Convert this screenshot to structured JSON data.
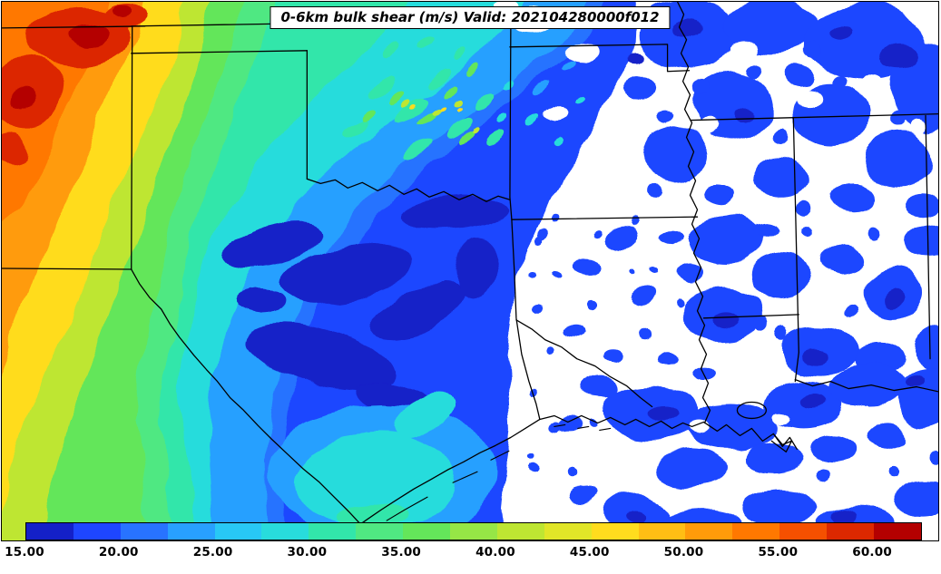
{
  "title": "0-6km bulk shear (m/s) Valid: 202104280000f012",
  "map": {
    "field": "0-6km bulk shear",
    "units": "m/s",
    "valid_time": "202104280000f012",
    "region": "South-central United States (NM/CO east through TX, OK, AR, LA, MS, AL)"
  },
  "colorbar": {
    "orientation": "horizontal",
    "min": 15,
    "max": 62.5,
    "step": 2.5,
    "tick_labels": [
      "15.00",
      "20.00",
      "25.00",
      "30.00",
      "35.00",
      "40.00",
      "45.00",
      "50.00",
      "55.00",
      "60.00"
    ],
    "segment_colors": [
      "#1420c8",
      "#1e46ff",
      "#2873ff",
      "#28a0ff",
      "#28c8f5",
      "#28dcdc",
      "#32e6aa",
      "#50e882",
      "#64e65a",
      "#96e646",
      "#bee632",
      "#e1e628",
      "#ffdc1e",
      "#ffbe14",
      "#ff9b0a",
      "#ff7800",
      "#f55000",
      "#dc2800",
      "#b40000"
    ]
  },
  "chart_data": {
    "type": "heatmap",
    "title": "0-6km bulk shear (m/s) Valid: 202104280000f012",
    "field": "0-6km bulk shear",
    "units": "m/s",
    "valid": "202104280000f012",
    "legend_position": "bottom",
    "levels": [
      15,
      17.5,
      20,
      22.5,
      25,
      27.5,
      30,
      32.5,
      35,
      37.5,
      40,
      42.5,
      45,
      47.5,
      50,
      52.5,
      55,
      57.5,
      60
    ],
    "colors": [
      "#1420c8",
      "#1e46ff",
      "#2873ff",
      "#28a0ff",
      "#28c8f5",
      "#28dcdc",
      "#32e6aa",
      "#50e882",
      "#64e65a",
      "#96e646",
      "#bee632",
      "#e1e628",
      "#ffdc1e",
      "#ffbe14",
      "#ff9b0a",
      "#ff7800",
      "#f55000",
      "#dc2800",
      "#b40000"
    ],
    "regions": [
      {
        "area": "southeast Colorado / far northeast New Mexico",
        "value_ms": "55-62 (maximum, dark red cores)"
      },
      {
        "area": "eastern New Mexico",
        "value_ms": "45-55"
      },
      {
        "area": "west Texas / New Mexico border zone",
        "value_ms": "40-50"
      },
      {
        "area": "Texas Panhandle",
        "value_ms": "30-42"
      },
      {
        "area": "western Oklahoma",
        "value_ms": "25-32"
      },
      {
        "area": "north-central Oklahoma / south Kansas",
        "value_ms": "27-45 rippled wave pattern of green-yellow speckles"
      },
      {
        "area": "north-central Texas",
        "value_ms": "17-22 with 15-17.5 dark blue pockets"
      },
      {
        "area": "central Texas minimum",
        "value_ms": "15-18"
      },
      {
        "area": "south / coastal Texas",
        "value_ms": "22-30 (cyan pocket)"
      },
      {
        "area": "east Texas",
        "value_ms": "15-20"
      },
      {
        "area": "Arkansas / lower Mississippi valley",
        "value_ms": "below 15 (white) with scattered 15-20 blue patches"
      },
      {
        "area": "Tennessee / Mississippi / Alabama",
        "value_ms": "below 15 (white) with extensive 15-20 blue patches"
      }
    ]
  }
}
